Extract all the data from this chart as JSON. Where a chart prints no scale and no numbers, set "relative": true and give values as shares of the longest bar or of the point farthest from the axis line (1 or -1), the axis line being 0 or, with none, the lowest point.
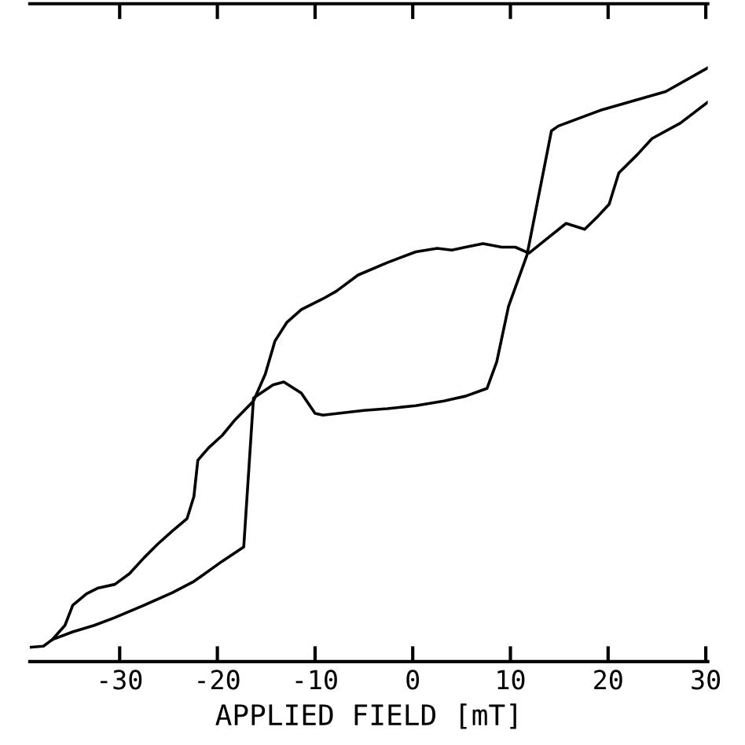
{
  "chart_data": {
    "type": "line",
    "xlabel": "APPLIED FIELD [mT]",
    "relative": true,
    "xlim": [
      -39.2,
      30.2
    ],
    "xticks": [
      -30,
      -20,
      -10,
      0,
      10,
      20,
      30
    ],
    "grid": false,
    "marker": "none",
    "line_style": "solid",
    "series": [
      {
        "color": "#000000",
        "x": [
          30.2,
          25.9,
          19.3,
          14.9,
          14.2,
          11.7,
          9.8,
          8.6,
          7.6,
          5.4,
          3.2,
          0.3,
          -2.6,
          -5.0,
          -9.2,
          -10.0,
          -11.4,
          -13.2,
          -14.3,
          -16.3,
          -17.3,
          -19.5,
          -22.4,
          -24.6,
          -27.5,
          -30.5,
          -32.6,
          -34.8,
          -36.9,
          -37.8,
          -39.2
        ],
        "values": [
          1.0,
          0.96,
          0.929,
          0.902,
          0.894,
          0.685,
          0.598,
          0.505,
          0.46,
          0.447,
          0.439,
          0.431,
          0.426,
          0.423,
          0.415,
          0.418,
          0.452,
          0.471,
          0.466,
          0.444,
          0.193,
          0.169,
          0.135,
          0.116,
          0.095,
          0.074,
          0.061,
          0.05,
          0.037,
          0.026,
          0.024
        ]
      },
      {
        "color": "#000000",
        "x": [
          -36.9,
          -35.6,
          -34.8,
          -33.4,
          -32.2,
          -30.5,
          -29.0,
          -27.5,
          -26.1,
          -24.6,
          -23.1,
          -22.4,
          -22.0,
          -20.9,
          -19.5,
          -18.3,
          -16.3,
          -15.1,
          -14.1,
          -12.9,
          -11.4,
          -9.2,
          -7.8,
          -5.6,
          -2.6,
          0.3,
          2.5,
          4.0,
          5.4,
          7.2,
          9.1,
          10.5,
          11.9,
          13.5,
          15.7,
          17.6,
          18.9,
          20.1,
          21.1,
          23.0,
          24.5,
          27.4,
          30.2
        ],
        "values": [
          0.037,
          0.061,
          0.095,
          0.114,
          0.124,
          0.13,
          0.148,
          0.175,
          0.198,
          0.22,
          0.241,
          0.278,
          0.339,
          0.36,
          0.381,
          0.405,
          0.439,
          0.484,
          0.54,
          0.571,
          0.593,
          0.611,
          0.624,
          0.651,
          0.672,
          0.69,
          0.696,
          0.693,
          0.698,
          0.704,
          0.698,
          0.698,
          0.688,
          0.709,
          0.738,
          0.728,
          0.749,
          0.77,
          0.823,
          0.854,
          0.881,
          0.907,
          0.942
        ]
      }
    ]
  }
}
